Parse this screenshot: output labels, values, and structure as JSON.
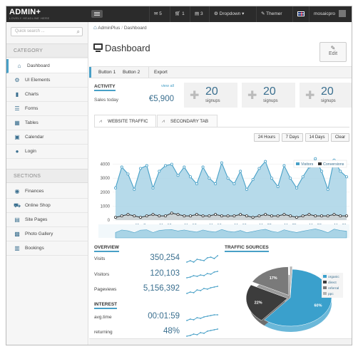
{
  "topbar": {
    "logo": "ADMIN+",
    "tagline": "LOVELY HEADLINE HERE",
    "messages_count": "5",
    "cart_count": "1",
    "tasks_count": "3",
    "dropdown_label": "Dropdown",
    "themer_label": "Themer",
    "username": "mosaicpro"
  },
  "sidebar": {
    "search_placeholder": "Quick search ...",
    "category_title": "CATEGORY",
    "category_items": [
      "Dashboard",
      "UI Elements",
      "Charts",
      "Forms",
      "Tables",
      "Calendar",
      "Login"
    ],
    "sections_title": "SECTIONS",
    "section_items": [
      "Finances",
      "Online Shop",
      "Site Pages",
      "Photo Gallery",
      "Bookings"
    ]
  },
  "breadcrumb": {
    "root": "AdminPlus",
    "current": "Dashboard"
  },
  "page": {
    "title": "Dashboard",
    "edit_label": "Edit"
  },
  "subnav": {
    "button1": "Button 1",
    "button2": "Button 2",
    "export": "Export"
  },
  "activity": {
    "title": "ACTIVITY",
    "view_all": "view all",
    "sales_label": "Sales today",
    "sales_value": "€5,900"
  },
  "signups": [
    {
      "value": "20",
      "label": "signups"
    },
    {
      "value": "20",
      "label": "signups"
    },
    {
      "value": "20",
      "label": "signups"
    }
  ],
  "tabs": {
    "tab1": "WEBSITE TRAFFIC",
    "tab2": "SECONDARY TAB"
  },
  "ranges": [
    "24 Hours",
    "7 Days",
    "14 Days",
    "Clear"
  ],
  "chart_data": {
    "type": "area",
    "ylim": [
      0,
      5000
    ],
    "yticks": [
      "0",
      "1000",
      "2000",
      "3000",
      "4000"
    ],
    "xticks": [
      "Mar 7",
      "Mar 10",
      "Mar 13",
      "Mar 16",
      "Mar 19",
      "Mar 22",
      "Mar 25",
      "Mar 28",
      "Mar 31"
    ],
    "legend": [
      "Visitors",
      "Conversions"
    ],
    "legend_position": "top-right",
    "grid": true,
    "colors": {
      "visitors": "#48a0c7",
      "visitors_fill": "#a9d4e6",
      "conversions": "#333333"
    },
    "series": [
      {
        "name": "Visitors",
        "values": [
          2300,
          3800,
          3300,
          2200,
          3700,
          3900,
          2300,
          3500,
          3900,
          4000,
          3200,
          3800,
          3100,
          2600,
          3800,
          3000,
          2600,
          4100,
          3000,
          2600,
          3500,
          2200,
          2900,
          3700,
          4200,
          3000,
          2400,
          3900,
          3000,
          2300,
          3100,
          3800,
          4400,
          3500,
          2200,
          4300,
          3500,
          3100
        ]
      },
      {
        "name": "Conversions",
        "values": [
          200,
          300,
          400,
          300,
          200,
          300,
          400,
          300,
          300,
          500,
          400,
          300,
          300,
          400,
          300,
          300,
          400,
          300,
          300,
          300,
          400,
          300,
          200,
          300,
          400,
          300,
          300,
          400,
          300,
          200,
          300,
          400,
          300,
          300,
          300,
          400,
          300,
          300
        ]
      }
    ]
  },
  "overview": {
    "title": "OVERVIEW",
    "rows": [
      {
        "label": "Visits",
        "value": "350,254"
      },
      {
        "label": "Visitors",
        "value": "120,103"
      },
      {
        "label": "Pageviews",
        "value": "5,156,392"
      }
    ]
  },
  "interest": {
    "title": "INTEREST",
    "rows": [
      {
        "label": "avg.time",
        "value": "00:01:59"
      },
      {
        "label": "returning",
        "value": "48%"
      }
    ]
  },
  "traffic_sources": {
    "title": "TRAFFIC SOURCES",
    "slices": [
      {
        "label": "organic",
        "percent": 60,
        "color": "#3aa0cc"
      },
      {
        "label": "direct",
        "percent": 22,
        "color": "#3c3c3c"
      },
      {
        "label": "referral",
        "percent": 17,
        "color": "#7a7a7a"
      },
      {
        "label": "ppc",
        "percent": 1,
        "color": "#b5b5b5"
      }
    ],
    "slice_labels": [
      "60%",
      "22%",
      "17%",
      "1%"
    ]
  }
}
